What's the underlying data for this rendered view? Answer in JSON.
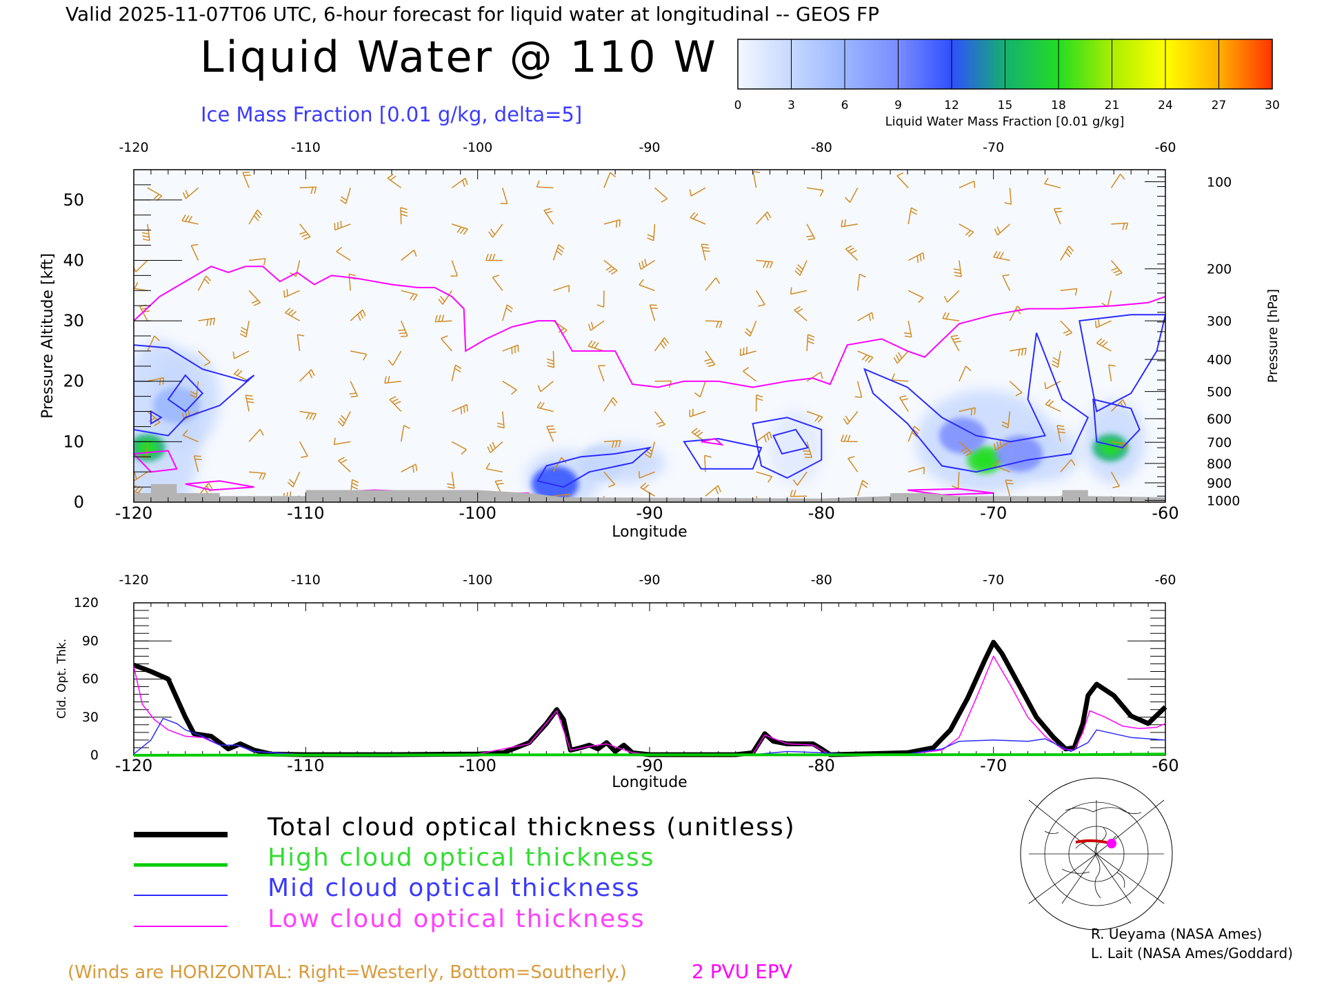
{
  "header": {
    "valid_line": "Valid 2025-11-07T06 UTC, 6-hour forecast for liquid water at longitudinal -- GEOS FP",
    "title": "Liquid Water @ 110 W",
    "subtitle": "Ice Mass Fraction [0.01 g/kg, delta=5]"
  },
  "colorbar": {
    "ticks": [
      "0",
      "3",
      "6",
      "9",
      "12",
      "15",
      "18",
      "21",
      "24",
      "27",
      "30"
    ],
    "label": "Liquid Water Mass Fraction [0.01 g/kg]",
    "colors": [
      "#f4f7ff",
      "#c6d8ff",
      "#9ab6ff",
      "#7a8cff",
      "#2f50ff",
      "#14b070",
      "#22dd22",
      "#aaee00",
      "#ffff00",
      "#ffb000",
      "#ff3300"
    ]
  },
  "chart_data": [
    {
      "type": "heatmap",
      "title": "Liquid Water @ 110 W",
      "xlabel": "Longitude",
      "ylabel_left": "Pressure Altitude [kft]",
      "ylabel_right": "Pressure [hPa]",
      "xlim": [
        -120,
        -60
      ],
      "ylim": [
        0,
        55
      ],
      "x_ticks": [
        "-120",
        "-110",
        "-100",
        "-90",
        "-80",
        "-70",
        "-60"
      ],
      "y_ticks_left": [
        "0",
        "10",
        "20",
        "30",
        "40",
        "50"
      ],
      "y_ticks_right": [
        {
          "label": "100",
          "kft": 53
        },
        {
          "label": "200",
          "kft": 38.6
        },
        {
          "label": "300",
          "kft": 30
        },
        {
          "label": "400",
          "kft": 23.6
        },
        {
          "label": "500",
          "kft": 18.3
        },
        {
          "label": "600",
          "kft": 13.8
        },
        {
          "label": "700",
          "kft": 9.9
        },
        {
          "label": "800",
          "kft": 6.4
        },
        {
          "label": "900",
          "kft": 3.2
        },
        {
          "label": "1000",
          "kft": 0.3
        }
      ],
      "epv_2pvu_kft": [
        [
          -120,
          30
        ],
        [
          -118.5,
          34
        ],
        [
          -117,
          36.5
        ],
        [
          -115.5,
          39
        ],
        [
          -114.5,
          38
        ],
        [
          -113.5,
          39
        ],
        [
          -112.5,
          39
        ],
        [
          -111.5,
          36.5
        ],
        [
          -110.5,
          38
        ],
        [
          -109.5,
          36
        ],
        [
          -108.5,
          37.5
        ],
        [
          -107,
          37
        ],
        [
          -105,
          36
        ],
        [
          -103.5,
          35.5
        ],
        [
          -102.5,
          35.5
        ],
        [
          -101.5,
          34
        ],
        [
          -100.8,
          32
        ],
        [
          -100.7,
          25
        ],
        [
          -99.5,
          27
        ],
        [
          -98,
          29
        ],
        [
          -96.5,
          30
        ],
        [
          -95.5,
          30
        ],
        [
          -94.5,
          25
        ],
        [
          -92,
          25
        ],
        [
          -91,
          19.5
        ],
        [
          -89.5,
          19
        ],
        [
          -88,
          20
        ],
        [
          -86,
          20
        ],
        [
          -84,
          19
        ],
        [
          -82,
          20
        ],
        [
          -80.5,
          20.5
        ],
        [
          -79.5,
          19.5
        ],
        [
          -78.5,
          26
        ],
        [
          -77.5,
          26.5
        ],
        [
          -76.5,
          27
        ],
        [
          -75,
          25
        ],
        [
          -74,
          24
        ],
        [
          -72,
          29.5
        ],
        [
          -70,
          31
        ],
        [
          -68,
          32
        ],
        [
          -66,
          32
        ],
        [
          -63,
          32.5
        ],
        [
          -61,
          33
        ],
        [
          -60,
          34
        ]
      ],
      "liquid_water_regions": [
        {
          "lon": -119.2,
          "kft": 9,
          "value": 15
        },
        {
          "lon": -117.5,
          "kft": 16,
          "value": 5
        },
        {
          "lon": -95.5,
          "kft": 3,
          "value": 11
        },
        {
          "lon": -92.8,
          "kft": 6.5,
          "value": 4
        },
        {
          "lon": -70.5,
          "kft": 7,
          "value": 17
        },
        {
          "lon": -71.8,
          "kft": 11,
          "value": 9
        },
        {
          "lon": -63.2,
          "kft": 9,
          "value": 14
        },
        {
          "lon": -68.5,
          "kft": 8,
          "value": 8
        }
      ]
    },
    {
      "type": "line",
      "xlabel": "Longitude",
      "ylabel": "Cld. Opt. Thk.",
      "xlim": [
        -120,
        -60
      ],
      "ylim": [
        0,
        120
      ],
      "x_ticks": [
        "-120",
        "-110",
        "-100",
        "-90",
        "-80",
        "-70",
        "-60"
      ],
      "y_ticks": [
        "0",
        "30",
        "60",
        "90",
        "120"
      ],
      "series": [
        {
          "name": "Total cloud optical thickness (unitless)",
          "color": "#000000",
          "points": [
            [
              -120,
              71
            ],
            [
              -119,
              66
            ],
            [
              -118,
              60
            ],
            [
              -117.5,
              45
            ],
            [
              -117,
              30
            ],
            [
              -116.5,
              17
            ],
            [
              -115.5,
              15
            ],
            [
              -115,
              10
            ],
            [
              -114.5,
              5
            ],
            [
              -113.8,
              9
            ],
            [
              -113,
              4
            ],
            [
              -112,
              1
            ],
            [
              -110,
              0.5
            ],
            [
              -105,
              0.5
            ],
            [
              -100,
              1
            ],
            [
              -98.5,
              2
            ],
            [
              -97,
              10
            ],
            [
              -96,
              25
            ],
            [
              -95.4,
              36
            ],
            [
              -95,
              28
            ],
            [
              -94.6,
              4
            ],
            [
              -94,
              6
            ],
            [
              -93.5,
              8
            ],
            [
              -93,
              5
            ],
            [
              -92.5,
              10
            ],
            [
              -92,
              3
            ],
            [
              -91.5,
              8
            ],
            [
              -91,
              2
            ],
            [
              -90,
              0.5
            ],
            [
              -85,
              0.5
            ],
            [
              -84,
              2
            ],
            [
              -83.3,
              17
            ],
            [
              -82.8,
              11
            ],
            [
              -82,
              9
            ],
            [
              -80.5,
              9
            ],
            [
              -80,
              5
            ],
            [
              -79.5,
              0.5
            ],
            [
              -78,
              1
            ],
            [
              -75,
              2
            ],
            [
              -73.5,
              6
            ],
            [
              -72.5,
              20
            ],
            [
              -71.5,
              45
            ],
            [
              -70.5,
              75
            ],
            [
              -70,
              89
            ],
            [
              -69.5,
              80
            ],
            [
              -68.5,
              55
            ],
            [
              -67.5,
              30
            ],
            [
              -66.5,
              14
            ],
            [
              -65.8,
              5
            ],
            [
              -65.3,
              6
            ],
            [
              -64.8,
              25
            ],
            [
              -64.5,
              47
            ],
            [
              -64,
              56
            ],
            [
              -63,
              47
            ],
            [
              -62,
              31
            ],
            [
              -61,
              25
            ],
            [
              -60,
              38
            ]
          ]
        },
        {
          "name": "High cloud optical thickness",
          "color": "#00cc00",
          "points": [
            [
              -120,
              0
            ],
            [
              -100,
              0.3
            ],
            [
              -80,
              0.3
            ],
            [
              -70,
              0.5
            ],
            [
              -65,
              0.5
            ],
            [
              -60,
              1
            ]
          ]
        },
        {
          "name": "Mid cloud optical thickness",
          "color": "#2a2aff",
          "points": [
            [
              -120,
              1
            ],
            [
              -119,
              12
            ],
            [
              -118.3,
              29
            ],
            [
              -117.5,
              25
            ],
            [
              -117,
              20
            ],
            [
              -116,
              15
            ],
            [
              -115,
              8
            ],
            [
              -114,
              8
            ],
            [
              -113,
              3
            ],
            [
              -110,
              0.3
            ],
            [
              -98,
              0.3
            ],
            [
              -96,
              0.5
            ],
            [
              -90,
              0.3
            ],
            [
              -84,
              0.5
            ],
            [
              -82,
              3
            ],
            [
              -80,
              2
            ],
            [
              -78,
              0.5
            ],
            [
              -75,
              1
            ],
            [
              -73,
              5
            ],
            [
              -72,
              11
            ],
            [
              -70,
              12
            ],
            [
              -68,
              11
            ],
            [
              -67,
              13
            ],
            [
              -65.5,
              3
            ],
            [
              -64.5,
              10
            ],
            [
              -64,
              20
            ],
            [
              -62,
              14
            ],
            [
              -60,
              12
            ]
          ]
        },
        {
          "name": "Low cloud optical thickness",
          "color": "#ff00ff",
          "points": [
            [
              -120,
              70
            ],
            [
              -119.5,
              40
            ],
            [
              -118.8,
              28
            ],
            [
              -118,
              20
            ],
            [
              -117,
              15
            ],
            [
              -116,
              14
            ],
            [
              -115,
              8
            ],
            [
              -114,
              8
            ],
            [
              -113,
              3
            ],
            [
              -110,
              0.5
            ],
            [
              -100,
              1
            ],
            [
              -97,
              9
            ],
            [
              -95.4,
              35
            ],
            [
              -94.6,
              4
            ],
            [
              -93.5,
              7
            ],
            [
              -92.5,
              9
            ],
            [
              -91,
              2
            ],
            [
              -90,
              0.5
            ],
            [
              -84,
              1
            ],
            [
              -83.3,
              16
            ],
            [
              -82,
              9
            ],
            [
              -80.5,
              8
            ],
            [
              -79.5,
              0.5
            ],
            [
              -75,
              1
            ],
            [
              -73,
              4
            ],
            [
              -72,
              14
            ],
            [
              -71,
              45
            ],
            [
              -70,
              78
            ],
            [
              -69,
              55
            ],
            [
              -68,
              30
            ],
            [
              -67,
              15
            ],
            [
              -66,
              5
            ],
            [
              -65.3,
              4
            ],
            [
              -64.8,
              18
            ],
            [
              -64.4,
              35
            ],
            [
              -63.5,
              30
            ],
            [
              -62.5,
              23
            ],
            [
              -61.5,
              21
            ],
            [
              -60.5,
              22
            ],
            [
              -60,
              25
            ]
          ]
        }
      ]
    }
  ],
  "legend": {
    "total": "Total cloud optical thickness (unitless)",
    "high": "High cloud optical thickness",
    "mid": "Mid cloud optical thickness",
    "low": "Low cloud optical thickness"
  },
  "credits": {
    "line1": "R. Ueyama (NASA Ames)",
    "line2": "L. Lait (NASA Ames/Goddard)"
  },
  "wind_note": "(Winds are HORIZONTAL: Right=Westerly, Bottom=Southerly.)",
  "epv_label": "2 PVU EPV",
  "colors": {
    "wind_barbs": "#d08a20",
    "epv": "#ff00ff",
    "ice_contour": "#2a2aff",
    "terrain": "#b4b4b4"
  }
}
